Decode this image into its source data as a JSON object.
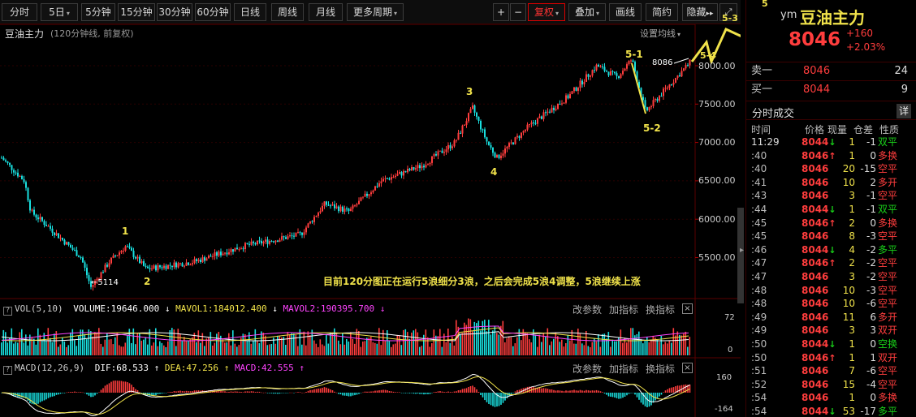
{
  "toolbar": {
    "periods": [
      "分时",
      "5日",
      "5分钟",
      "15分钟",
      "30分钟",
      "60分钟",
      "日线",
      "周线",
      "月线",
      "更多周期"
    ],
    "plus": "+",
    "minus": "−",
    "fuquan": "复权",
    "overlay": "叠加",
    "draw": "画线",
    "simple": "简约",
    "hide": "隐藏",
    "hide_arrows": "▸▸"
  },
  "chart": {
    "title": "豆油主力",
    "subtitle": "(120分钟线, 前复权)",
    "ma_setting": "设置均线",
    "y_ticks": [
      "8000.00",
      "7500.00",
      "7000.00",
      "6500.00",
      "6000.00",
      "5500.00"
    ],
    "high_label": "8086",
    "low_label": "5114",
    "wave_labels": [
      "1",
      "2",
      "3",
      "4",
      "5-1",
      "5-2",
      "5-3",
      "5-4",
      "5"
    ],
    "annotation": "目前120分图正在运行5浪细分3浪，之后会完成5浪4调整，5浪继续上涨",
    "colors": {
      "up": "#ff3d3d",
      "down": "#19e0e0",
      "wave": "#f0e24a",
      "accent": "#d00000"
    }
  },
  "vol_panel": {
    "q": "?",
    "label": "VOL(5,10)",
    "volume": "VOLUME:19646.000",
    "mavol1": "MAVOL1:184012.400",
    "mavol2": "MAVOL2:190395.700",
    "btn_param": "改参数",
    "btn_add": "加指标",
    "btn_switch": "换指标",
    "close": "×",
    "y_ticks": [
      "72",
      "0"
    ]
  },
  "macd_panel": {
    "q": "?",
    "label": "MACD(12,26,9)",
    "dif": "DIF:68.533",
    "dea": "DEA:47.256",
    "macd": "MACD:42.555",
    "btn_param": "改参数",
    "btn_add": "加指标",
    "btn_switch": "换指标",
    "close": "×",
    "y_ticks": [
      "160",
      "-164"
    ]
  },
  "quote": {
    "code": "ym",
    "name": "豆油主力",
    "price": "8046",
    "change": "+160",
    "change_pct": "+2.03%",
    "sell_label": "卖一",
    "sell_price": "8046",
    "sell_vol": "24",
    "buy_label": "买一",
    "buy_price": "8044",
    "buy_vol": "9"
  },
  "ticks": {
    "title": "分时成交",
    "detail": "详",
    "headers": [
      "时间",
      "价格",
      "现量",
      "仓差",
      "性质"
    ],
    "rows": [
      {
        "time": "11:29",
        "price": "8044",
        "dir": "down",
        "vol": "1",
        "oi": "-1",
        "nature": "双平",
        "ncolor": "green"
      },
      {
        "time": ":40",
        "price": "8046",
        "dir": "up",
        "vol": "1",
        "oi": "0",
        "nature": "多换",
        "ncolor": "red"
      },
      {
        "time": ":40",
        "price": "8046",
        "dir": "",
        "vol": "20",
        "oi": "-15",
        "nature": "空平",
        "ncolor": "red"
      },
      {
        "time": ":41",
        "price": "8046",
        "dir": "",
        "vol": "10",
        "oi": "2",
        "nature": "多开",
        "ncolor": "red"
      },
      {
        "time": ":43",
        "price": "8046",
        "dir": "",
        "vol": "3",
        "oi": "-1",
        "nature": "空平",
        "ncolor": "red"
      },
      {
        "time": ":44",
        "price": "8044",
        "dir": "down",
        "vol": "1",
        "oi": "-1",
        "nature": "双平",
        "ncolor": "green"
      },
      {
        "time": ":45",
        "price": "8046",
        "dir": "up",
        "vol": "2",
        "oi": "0",
        "nature": "多换",
        "ncolor": "red"
      },
      {
        "time": ":45",
        "price": "8046",
        "dir": "",
        "vol": "8",
        "oi": "-3",
        "nature": "空平",
        "ncolor": "red"
      },
      {
        "time": ":46",
        "price": "8044",
        "dir": "down",
        "vol": "4",
        "oi": "-2",
        "nature": "多平",
        "ncolor": "green"
      },
      {
        "time": ":47",
        "price": "8046",
        "dir": "up",
        "vol": "2",
        "oi": "-2",
        "nature": "空平",
        "ncolor": "red"
      },
      {
        "time": ":47",
        "price": "8046",
        "dir": "",
        "vol": "3",
        "oi": "-2",
        "nature": "空平",
        "ncolor": "red"
      },
      {
        "time": ":48",
        "price": "8046",
        "dir": "",
        "vol": "10",
        "oi": "-3",
        "nature": "空平",
        "ncolor": "red"
      },
      {
        "time": ":48",
        "price": "8046",
        "dir": "",
        "vol": "10",
        "oi": "-6",
        "nature": "空平",
        "ncolor": "red"
      },
      {
        "time": ":49",
        "price": "8046",
        "dir": "",
        "vol": "11",
        "oi": "6",
        "nature": "多开",
        "ncolor": "red"
      },
      {
        "time": ":49",
        "price": "8046",
        "dir": "",
        "vol": "3",
        "oi": "3",
        "nature": "双开",
        "ncolor": "red"
      },
      {
        "time": ":50",
        "price": "8044",
        "dir": "down",
        "vol": "1",
        "oi": "0",
        "nature": "空换",
        "ncolor": "green"
      },
      {
        "time": ":50",
        "price": "8046",
        "dir": "up",
        "vol": "1",
        "oi": "1",
        "nature": "双开",
        "ncolor": "red"
      },
      {
        "time": ":51",
        "price": "8046",
        "dir": "",
        "vol": "7",
        "oi": "-6",
        "nature": "空平",
        "ncolor": "red"
      },
      {
        "time": ":52",
        "price": "8046",
        "dir": "",
        "vol": "15",
        "oi": "-4",
        "nature": "空平",
        "ncolor": "red"
      },
      {
        "time": ":54",
        "price": "8046",
        "dir": "",
        "vol": "1",
        "oi": "0",
        "nature": "多换",
        "ncolor": "red"
      },
      {
        "time": ":54",
        "price": "8044",
        "dir": "down",
        "vol": "53",
        "oi": "-17",
        "nature": "多平",
        "ncolor": "green"
      }
    ]
  }
}
